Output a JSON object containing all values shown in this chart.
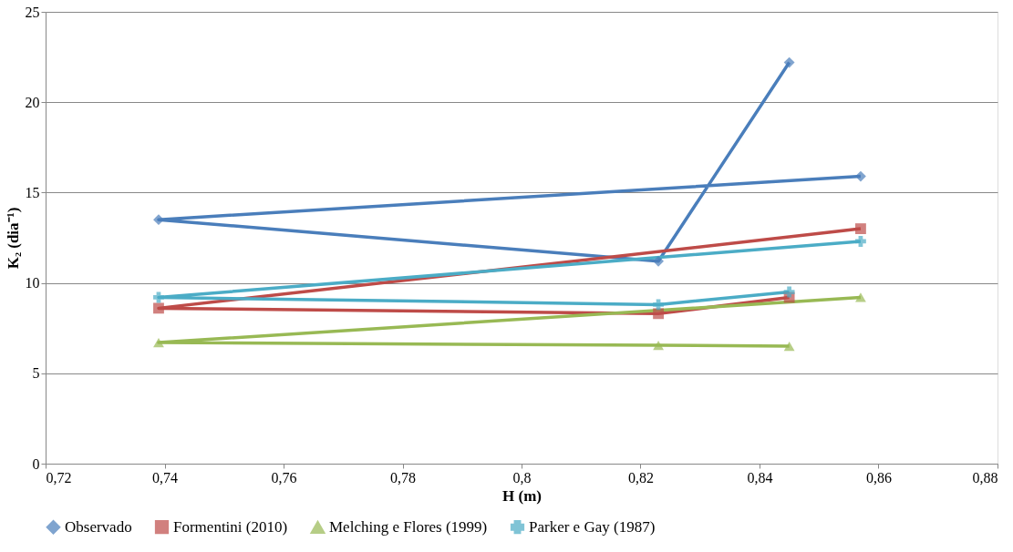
{
  "chart_data": {
    "type": "line",
    "xlabel": "H (m)",
    "ylabel": "K₂ (dia⁻¹)",
    "xlim": [
      0.72,
      0.88
    ],
    "xticks": [
      {
        "value": 0.72,
        "label": "0,72"
      },
      {
        "value": 0.74,
        "label": "0,74"
      },
      {
        "value": 0.76,
        "label": "0,76"
      },
      {
        "value": 0.78,
        "label": "0,78"
      },
      {
        "value": 0.8,
        "label": "0,8"
      },
      {
        "value": 0.82,
        "label": "0,82"
      },
      {
        "value": 0.84,
        "label": "0,84"
      },
      {
        "value": 0.86,
        "label": "0,86"
      },
      {
        "value": 0.88,
        "label": "0,88"
      }
    ],
    "ylim": [
      0,
      25
    ],
    "yticks": [
      0,
      5,
      10,
      15,
      20,
      25
    ],
    "grid": "y",
    "legend": "bottom",
    "series": [
      {
        "name": "Observado",
        "color": "#4a7ebb",
        "marker": "diamond",
        "x": [
          0.857,
          0.739,
          0.823,
          0.845
        ],
        "values": [
          15.9,
          13.5,
          11.2,
          22.2
        ]
      },
      {
        "name": "Formentini (2010)",
        "color": "#be4b48",
        "marker": "square",
        "x": [
          0.857,
          0.739,
          0.823,
          0.845
        ],
        "values": [
          13.0,
          8.6,
          8.3,
          9.2
        ]
      },
      {
        "name": "Melching e Flores (1999)",
        "color": "#98b954",
        "marker": "triangle",
        "x": [
          0.857,
          0.739,
          0.823,
          0.845
        ],
        "values": [
          9.2,
          6.7,
          6.55,
          6.5
        ]
      },
      {
        "name": "Parker e Gay (1987)",
        "color": "#4bacc6",
        "marker": "cross",
        "x": [
          0.857,
          0.739,
          0.823,
          0.845
        ],
        "values": [
          12.3,
          9.2,
          8.8,
          9.5
        ]
      }
    ]
  }
}
